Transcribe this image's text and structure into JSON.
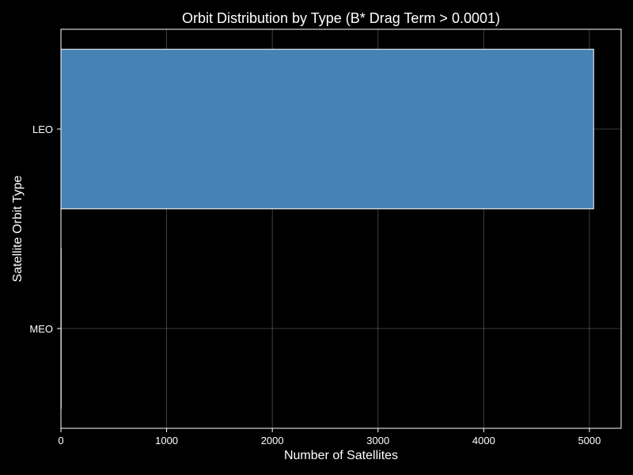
{
  "chart_data": {
    "type": "bar",
    "orientation": "horizontal",
    "title": "Orbit Distribution by Type (B* Drag Term > 0.0001)",
    "xlabel": "Number of Satellites",
    "ylabel": "Satellite Orbit Type",
    "categories": [
      "LEO",
      "MEO"
    ],
    "values": [
      5040,
      2
    ],
    "xlim": [
      0,
      5300
    ],
    "xticks": [
      0,
      1000,
      2000,
      3000,
      4000,
      5000
    ],
    "grid": true,
    "bar_color": "#4682B4",
    "background_color": "#000000",
    "text_color": "#ffffff"
  }
}
